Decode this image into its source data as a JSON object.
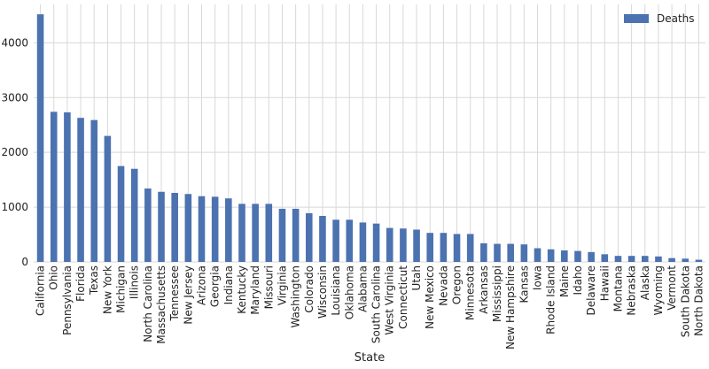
{
  "chart_data": {
    "type": "bar",
    "xlabel": "State",
    "ylabel": "",
    "ylim": [
      0,
      4700
    ],
    "yticks": [
      0,
      1000,
      2000,
      3000,
      4000
    ],
    "grid": true,
    "legend_position": "top-right",
    "bar_color": "#4c72b0",
    "categories": [
      "California",
      "Ohio",
      "Pennsylvania",
      "Florida",
      "Texas",
      "New York",
      "Michigan",
      "Illinois",
      "North Carolina",
      "Massachusetts",
      "Tennessee",
      "New Jersey",
      "Arizona",
      "Georgia",
      "Indiana",
      "Kentucky",
      "Maryland",
      "Missouri",
      "Virginia",
      "Washington",
      "Colorado",
      "Wisconsin",
      "Louisiana",
      "Oklahoma",
      "Alabama",
      "South Carolina",
      "West Virginia",
      "Connecticut",
      "Utah",
      "New Mexico",
      "Nevada",
      "Oregon",
      "Minnesota",
      "Arkansas",
      "Mississippi",
      "New Hampshire",
      "Kansas",
      "Iowa",
      "Rhode Island",
      "Maine",
      "Idaho",
      "Delaware",
      "Hawaii",
      "Montana",
      "Nebraska",
      "Alaska",
      "Wyoming",
      "Vermont",
      "South Dakota",
      "North Dakota"
    ],
    "series": [
      {
        "name": "Deaths",
        "values": [
          4520,
          2740,
          2730,
          2630,
          2590,
          2300,
          1750,
          1700,
          1340,
          1280,
          1260,
          1240,
          1200,
          1190,
          1160,
          1060,
          1060,
          1060,
          970,
          970,
          890,
          840,
          770,
          770,
          720,
          700,
          620,
          610,
          590,
          530,
          530,
          510,
          510,
          340,
          330,
          330,
          320,
          250,
          230,
          210,
          200,
          180,
          140,
          110,
          110,
          110,
          100,
          70,
          60,
          40
        ]
      }
    ]
  }
}
